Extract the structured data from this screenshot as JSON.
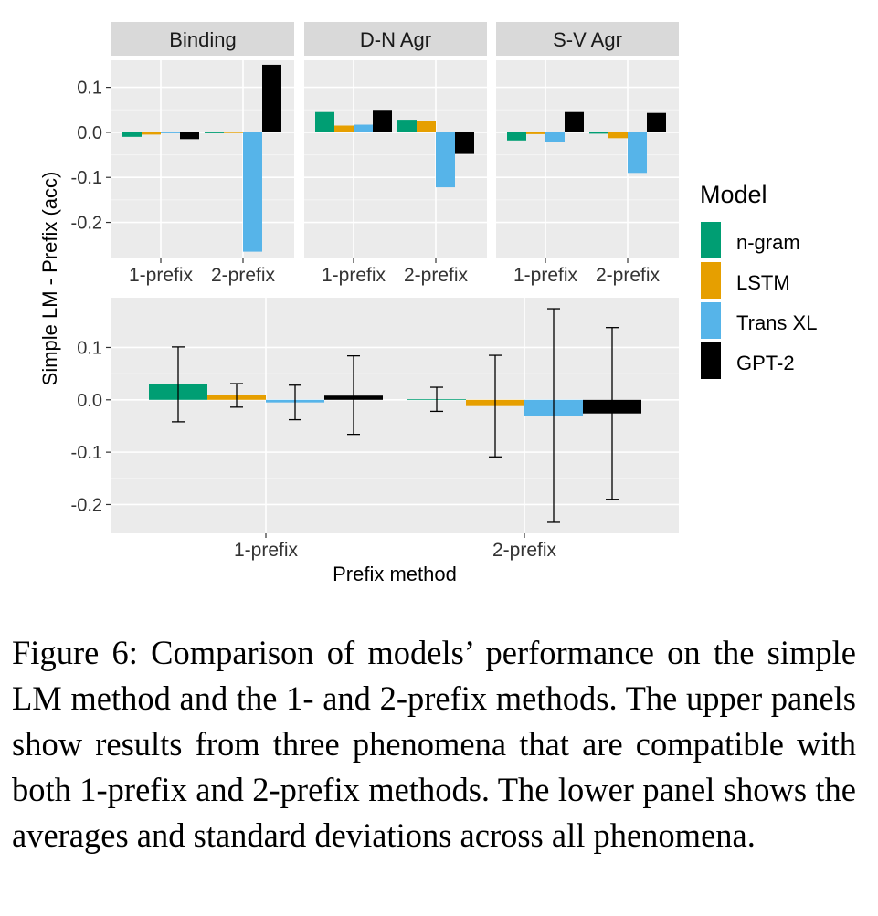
{
  "chart_data": {
    "type": "bar",
    "ylabel": "Simple LM - Prefix (acc)",
    "legend": {
      "title": "Model",
      "placement": "right",
      "entries": [
        {
          "name": "n-gram",
          "color": "#009E73"
        },
        {
          "name": "LSTM",
          "color": "#E69F00"
        },
        {
          "name": "Trans XL",
          "color": "#56B4E9"
        },
        {
          "name": "GPT-2",
          "color": "#000000"
        }
      ]
    },
    "series_names": [
      "n-gram",
      "LSTM",
      "Trans XL",
      "GPT-2"
    ],
    "upper_panels": {
      "ylim": [
        -0.28,
        0.16
      ],
      "yticks": [
        0.1,
        0.0,
        -0.1,
        -0.2
      ],
      "ytick_labels": [
        "0.1",
        "0.0",
        "-0.1",
        "-0.2"
      ],
      "categories": [
        "1-prefix",
        "2-prefix"
      ],
      "panels": [
        {
          "strip": "Binding",
          "values": [
            [
              -0.01,
              -0.005,
              -0.002,
              -0.015
            ],
            [
              -0.002,
              -0.001,
              -0.265,
              0.15
            ]
          ]
        },
        {
          "strip": "D-N Agr",
          "values": [
            [
              0.045,
              0.015,
              0.017,
              0.05
            ],
            [
              0.028,
              0.025,
              -0.122,
              -0.048
            ]
          ]
        },
        {
          "strip": "S-V Agr",
          "values": [
            [
              -0.018,
              -0.004,
              -0.022,
              0.045
            ],
            [
              -0.003,
              -0.013,
              -0.09,
              0.043
            ]
          ]
        }
      ]
    },
    "lower_panel": {
      "ylim": [
        -0.255,
        0.195
      ],
      "yticks": [
        0.1,
        0.0,
        -0.1,
        -0.2
      ],
      "ytick_labels": [
        "0.1",
        "0.0",
        "-0.1",
        "-0.2"
      ],
      "categories": [
        "1-prefix",
        "2-prefix"
      ],
      "xlabel": "Prefix method",
      "means": [
        [
          0.03,
          0.009,
          -0.005,
          0.008
        ],
        [
          0.001,
          -0.012,
          -0.03,
          -0.026
        ]
      ],
      "errors": [
        [
          [
            -0.042,
            0.101
          ],
          [
            -0.014,
            0.031
          ],
          [
            -0.038,
            0.028
          ],
          [
            -0.066,
            0.084
          ]
        ],
        [
          [
            -0.022,
            0.024
          ],
          [
            -0.109,
            0.085
          ],
          [
            -0.234,
            0.174
          ],
          [
            -0.19,
            0.138
          ]
        ]
      ]
    },
    "grid": true
  },
  "caption": "Figure 6: Comparison of models’ performance on the simple LM method and the 1- and 2-prefix methods. The upper panels show results from three phenomena that are compatible with both 1-prefix and 2-prefix methods. The lower panel shows the averages and standard deviations across all phenomena."
}
